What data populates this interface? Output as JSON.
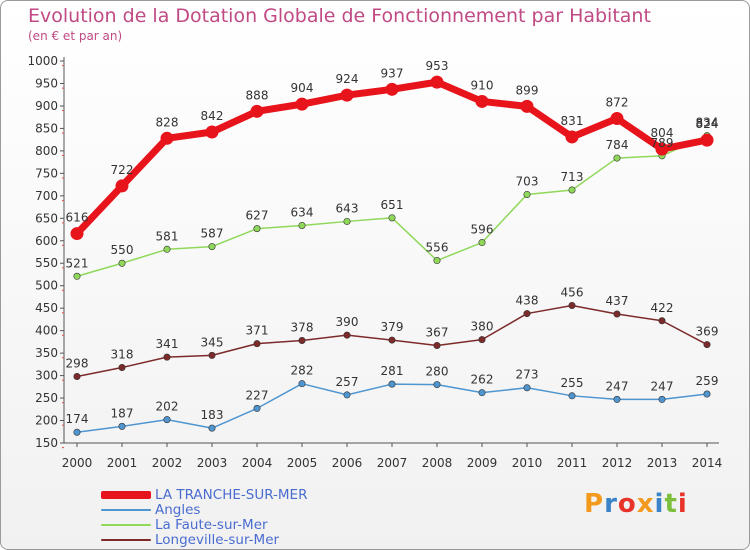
{
  "chart_data": {
    "type": "line",
    "title": "Evolution de la Dotation Globale de Fonctionnement par Habitant",
    "subtitle": "(en € et par an)",
    "x": [
      2000,
      2001,
      2002,
      2003,
      2004,
      2005,
      2006,
      2007,
      2008,
      2009,
      2010,
      2011,
      2012,
      2013,
      2014
    ],
    "ylim": [
      150,
      1000
    ],
    "yticks": [
      150,
      200,
      250,
      300,
      350,
      400,
      450,
      500,
      550,
      600,
      650,
      700,
      750,
      800,
      850,
      900,
      950,
      1000
    ],
    "grid": false,
    "legend_position": "bottom-left",
    "series": [
      {
        "name": "LA TRANCHE-SUR-MER",
        "color": "#e8141b",
        "values": [
          616,
          722,
          828,
          842,
          888,
          904,
          924,
          937,
          953,
          910,
          899,
          831,
          872,
          804,
          824
        ]
      },
      {
        "name": "Angles",
        "color": "#4f95d0",
        "values": [
          174,
          187,
          202,
          183,
          227,
          282,
          257,
          281,
          280,
          262,
          273,
          255,
          247,
          247,
          259
        ]
      },
      {
        "name": "La Faute-sur-Mer",
        "color": "#8fd85a",
        "values": [
          521,
          550,
          581,
          587,
          627,
          634,
          643,
          651,
          556,
          596,
          703,
          713,
          784,
          789,
          834
        ]
      },
      {
        "name": "Longeville-sur-Mer",
        "color": "#7d2a2a",
        "values": [
          298,
          318,
          341,
          345,
          371,
          378,
          390,
          379,
          367,
          380,
          438,
          456,
          437,
          422,
          369
        ]
      }
    ],
    "data_labels": {
      "LA TRANCHE-SUR-MER": [
        "616",
        "722",
        "828",
        "842",
        "888",
        "904",
        "924",
        "937",
        "953",
        "910",
        "899",
        "831",
        "872",
        "804",
        "824"
      ],
      "Angles": [
        "174",
        "187",
        "202",
        "183",
        "227",
        "282",
        "257",
        "281",
        "280",
        "262",
        "273",
        "255",
        "247",
        "247",
        "259"
      ],
      "La Faute-sur-Mer": [
        "521",
        "550",
        "581",
        "587",
        "627",
        "634",
        "643",
        "651",
        "556",
        "596",
        "703",
        "713",
        "784",
        "789",
        "834"
      ],
      "Longeville-sur-Mer": [
        "298",
        "318",
        "341",
        "345",
        "371",
        "378",
        "390",
        "379",
        "367",
        "380",
        "438",
        "456",
        "437",
        "422",
        "369"
      ]
    }
  },
  "logo": {
    "text": "Proxiti",
    "letters": [
      {
        "ch": "P",
        "color": "#f39a1e"
      },
      {
        "ch": "r",
        "color": "#3b83c8"
      },
      {
        "ch": "o",
        "color": "#e8332a"
      },
      {
        "ch": "x",
        "color": "#f39a1e"
      },
      {
        "ch": "i",
        "color": "#3b83c8"
      },
      {
        "ch": "t",
        "color": "#7dbf3a"
      },
      {
        "ch": "i",
        "color": "#e8332a"
      }
    ]
  }
}
